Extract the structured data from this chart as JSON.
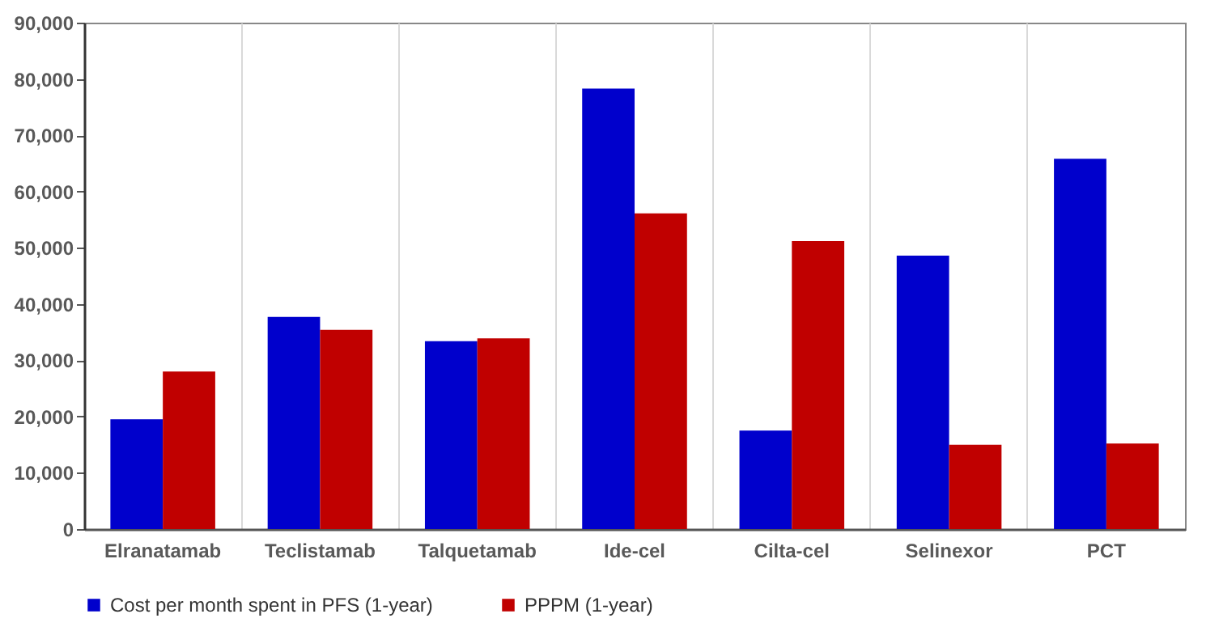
{
  "chart_data": {
    "type": "bar",
    "categories": [
      "Elranatamab",
      "Teclistamab",
      "Talquetamab",
      "Ide-cel",
      "Cilta-cel",
      "Selinexor",
      "PCT"
    ],
    "series": [
      {
        "name": "Cost per month spent in PFS (1-year)",
        "color": "#0000cc",
        "values": [
          19500,
          37700,
          33400,
          78300,
          17500,
          48600,
          65800
        ]
      },
      {
        "name": "PPPM (1-year)",
        "color": "#c00000",
        "values": [
          28000,
          35400,
          33900,
          56100,
          51200,
          15000,
          15200
        ]
      }
    ],
    "ylim": [
      0,
      90000
    ],
    "yticks": [
      0,
      {
        "value": 10000,
        "label": "10,000"
      },
      {
        "value": 20000,
        "label": "20,000"
      },
      {
        "value": 30000,
        "label": "30,000"
      },
      {
        "value": 40000,
        "label": "40,000"
      },
      {
        "value": 50000,
        "label": "50,000"
      },
      {
        "value": 60000,
        "label": "60,000"
      },
      {
        "value": 70000,
        "label": "70,000"
      },
      {
        "value": 80000,
        "label": "80,000"
      },
      {
        "value": 90000,
        "label": "90,000"
      }
    ],
    "grid": "x",
    "legend": "bottom"
  }
}
